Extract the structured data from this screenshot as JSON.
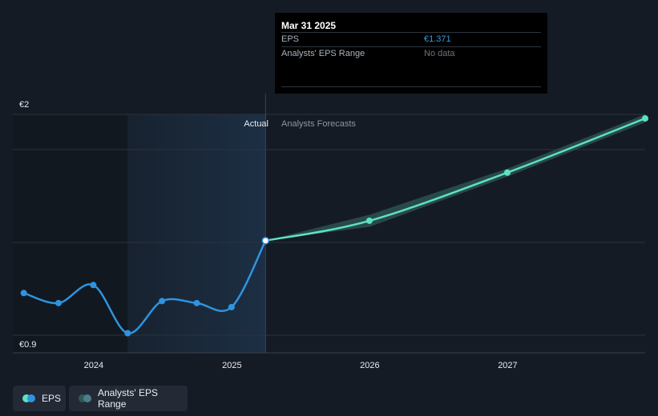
{
  "tooltip": {
    "date": "Mar 31 2025",
    "eps_label": "EPS",
    "eps_value": "€1.371",
    "range_label": "Analysts' EPS Range",
    "range_value": "No data"
  },
  "legend": {
    "eps_label": "EPS",
    "range_label": "Analysts' EPS Range"
  },
  "colors": {
    "background": "#151b24",
    "eps_actual": "#2e94e0",
    "eps_forecast": "#5ee0c6",
    "forecast_band": "#2f5a56",
    "actual_shade": "#1c2f44"
  },
  "chart_data": {
    "type": "line",
    "title": "",
    "xlabel": "",
    "ylabel": "",
    "ylim": [
      0.9,
      2.0
    ],
    "y_tick_labels": [
      "€2",
      "€0.9"
    ],
    "x_tick_labels": [
      "2024",
      "2025",
      "2026",
      "2027"
    ],
    "xlim": [
      "2023-06-01",
      "2027-12-31"
    ],
    "region_labels": {
      "actual": "Actual",
      "forecast": "Analysts Forecasts"
    },
    "grid": true,
    "series": [
      {
        "name": "EPS",
        "kind": "actual",
        "points": [
          {
            "x": "2023-06-30",
            "y": 1.11
          },
          {
            "x": "2023-09-30",
            "y": 1.06
          },
          {
            "x": "2023-12-31",
            "y": 1.15
          },
          {
            "x": "2024-03-31",
            "y": 0.91
          },
          {
            "x": "2024-06-30",
            "y": 1.07
          },
          {
            "x": "2024-09-30",
            "y": 1.06
          },
          {
            "x": "2024-12-31",
            "y": 1.04
          },
          {
            "x": "2025-03-31",
            "y": 1.371
          }
        ]
      },
      {
        "name": "EPS",
        "kind": "forecast",
        "points": [
          {
            "x": "2025-03-31",
            "y": 1.371
          },
          {
            "x": "2025-12-31",
            "y": 1.47
          },
          {
            "x": "2026-12-31",
            "y": 1.71
          },
          {
            "x": "2027-12-31",
            "y": 1.98
          }
        ]
      },
      {
        "name": "Analysts' EPS Range",
        "kind": "range",
        "points": [
          {
            "x": "2025-03-31",
            "low": 1.371,
            "high": 1.371
          },
          {
            "x": "2025-12-31",
            "low": 1.44,
            "high": 1.5
          },
          {
            "x": "2026-12-31",
            "low": 1.69,
            "high": 1.73
          },
          {
            "x": "2027-12-31",
            "low": 1.96,
            "high": 2.0
          }
        ]
      }
    ],
    "tooltip_x": "2025-03-31"
  }
}
